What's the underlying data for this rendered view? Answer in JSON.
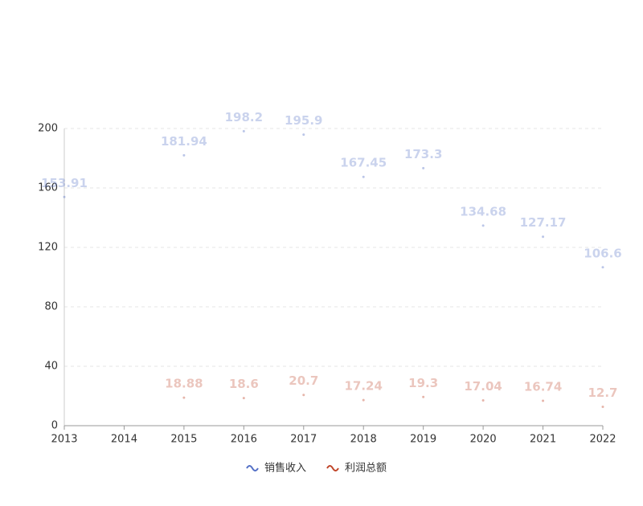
{
  "chart_data": {
    "type": "scatter",
    "categories": [
      "2013",
      "2014",
      "2015",
      "2016",
      "2017",
      "2018",
      "2019",
      "2020",
      "2021",
      "2022"
    ],
    "series": [
      {
        "name": "销售收入",
        "color": "#5470c6",
        "values": [
          153.91,
          null,
          181.94,
          198.2,
          195.9,
          167.45,
          173.3,
          134.68,
          127.17,
          106.6
        ]
      },
      {
        "name": "利润总额",
        "color": "#c0462a",
        "values": [
          null,
          null,
          18.88,
          18.6,
          20.7,
          17.24,
          19.3,
          17.04,
          16.74,
          12.7
        ]
      }
    ],
    "ylim": [
      0,
      200
    ],
    "yticks": [
      0,
      40,
      80,
      120,
      160,
      200
    ],
    "grid": true,
    "legend": "bottom"
  }
}
